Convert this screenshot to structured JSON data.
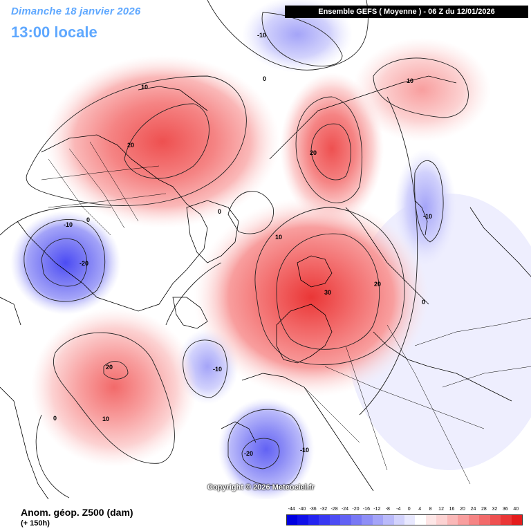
{
  "header": {
    "date": "Dimanche 18 janvier 2026",
    "time": "13:00 locale",
    "model": "Ensemble GEFS  ( Moyenne )  -  06 Z du 12/01/2026"
  },
  "footer": {
    "variable": "Anom. géop. Z500 (dam)",
    "lead": "(+ 150h)",
    "copyright": "Copyright © 2026 Meteociel.fr"
  },
  "legend": {
    "ticks": [
      "-44",
      "-40",
      "-36",
      "-32",
      "-28",
      "-24",
      "-20",
      "-16",
      "-12",
      "-8",
      "-4",
      "0",
      "4",
      "8",
      "12",
      "16",
      "20",
      "24",
      "28",
      "32",
      "36",
      "40"
    ],
    "colors": [
      "#0000e0",
      "#1010e8",
      "#2424f0",
      "#3838f2",
      "#4c4cf4",
      "#6262f4",
      "#7878f4",
      "#8e8ef6",
      "#a4a4f8",
      "#babafa",
      "#d2d2fc",
      "#e8e8fe",
      "#ffffff",
      "#fde6e6",
      "#fcd2d2",
      "#fab8b8",
      "#f89e9e",
      "#f58484",
      "#f26a6a",
      "#ee5050",
      "#ea3636",
      "#e41c1c"
    ]
  },
  "contour_labels": [
    {
      "text": "-10"
    },
    {
      "text": "10"
    },
    {
      "text": "0"
    },
    {
      "text": "20"
    },
    {
      "text": "10"
    },
    {
      "text": "20"
    },
    {
      "text": "-10"
    },
    {
      "text": "0"
    },
    {
      "text": "-10"
    },
    {
      "text": "-20"
    },
    {
      "text": "10"
    },
    {
      "text": "0"
    },
    {
      "text": "30"
    },
    {
      "text": "20"
    },
    {
      "text": "0"
    },
    {
      "text": "20"
    },
    {
      "text": "10"
    },
    {
      "text": "0"
    },
    {
      "text": "-10"
    },
    {
      "text": "-20"
    },
    {
      "text": "-10"
    }
  ]
}
